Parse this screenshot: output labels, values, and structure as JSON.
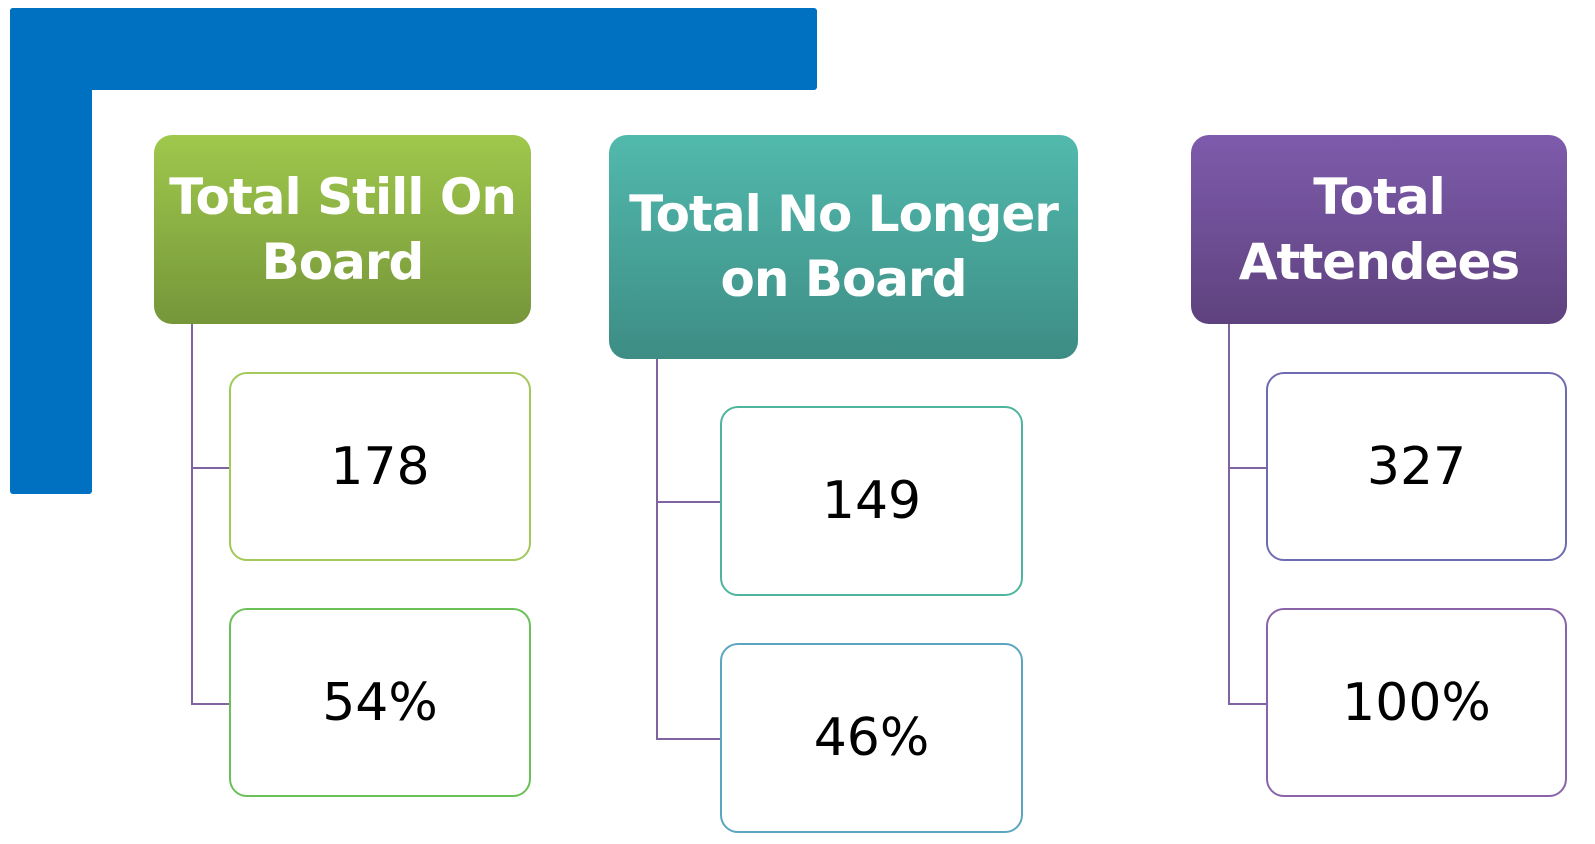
{
  "groups": [
    {
      "title_lines": [
        "Total Still On",
        "Board"
      ],
      "items": [
        "178",
        "54%"
      ]
    },
    {
      "title_lines": [
        "Total No Longer",
        "on Board"
      ],
      "items": [
        "149",
        "46%"
      ]
    },
    {
      "title_lines": [
        "Total",
        "Attendees"
      ],
      "items": [
        "327",
        "100%"
      ]
    }
  ]
}
